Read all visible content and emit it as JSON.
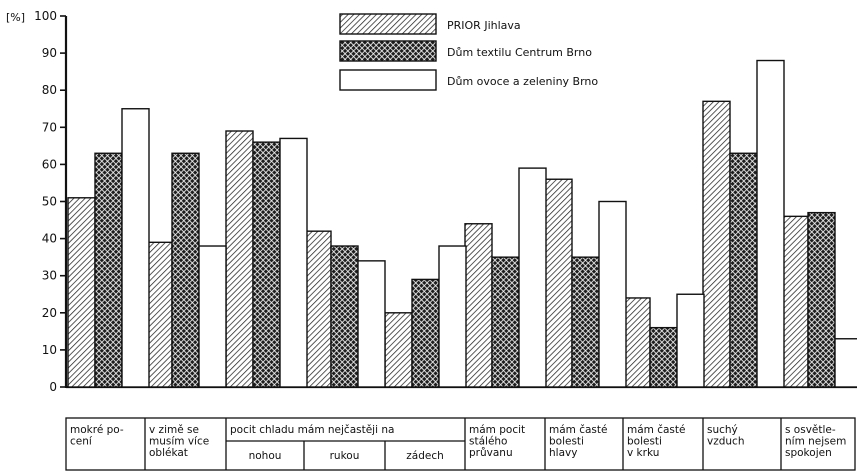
{
  "chart_data": {
    "type": "bar",
    "y_unit_label": "[%]",
    "ylim": [
      0,
      100
    ],
    "y_ticks": [
      "0",
      "10",
      "20",
      "30",
      "40",
      "50",
      "60",
      "70",
      "80",
      "90",
      "100"
    ],
    "grid": false,
    "legend_position": "top-center",
    "series": [
      {
        "name": "PRIOR Jihlava",
        "pattern": "hatch",
        "color": "#ffffff",
        "values": [
          51,
          39,
          69,
          42,
          20,
          44,
          56,
          24,
          77,
          46
        ]
      },
      {
        "name": "Dům textilu Centrum Brno",
        "pattern": "crosshatch",
        "color": "#2a2a2a",
        "values": [
          63,
          63,
          66,
          38,
          29,
          35,
          35,
          16,
          63,
          47
        ]
      },
      {
        "name": "Dům ovoce a zeleniny Brno",
        "pattern": "empty",
        "color": "#ffffff",
        "values": [
          75,
          38,
          67,
          34,
          38,
          59,
          50,
          25,
          88,
          13
        ]
      }
    ],
    "category_table": [
      {
        "lines": [
          "mokré po-",
          "cení"
        ]
      },
      {
        "lines": [
          "v zimě se",
          "musím více",
          "oblékat"
        ]
      },
      {
        "group": "pocit chladu mám nejčastěji na",
        "subs": [
          "nohou",
          "rukou",
          "zádech"
        ]
      },
      {
        "lines": [
          "mám pocit",
          "stálého",
          "průvanu"
        ]
      },
      {
        "lines": [
          "mám časté",
          "bolesti",
          "hlavy"
        ]
      },
      {
        "lines": [
          "mám časté",
          "bolesti",
          "v krku"
        ]
      },
      {
        "lines": [
          "suchý",
          "vzduch"
        ]
      },
      {
        "lines": [
          "s osvětle-",
          "ním nejsem",
          "spokojen"
        ]
      }
    ]
  }
}
